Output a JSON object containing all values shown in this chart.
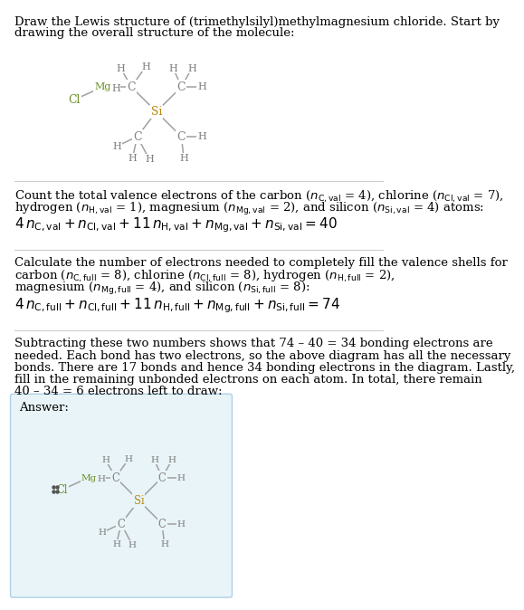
{
  "title_lines": [
    "Draw the Lewis structure of (trimethylsilyl)methylmagnesium chloride. Start by",
    "drawing the overall structure of the molecule:"
  ],
  "s1_lines": [
    "Count the total valence electrons of the carbon ($n_{\\mathrm{C,val}}$ = 4), chlorine ($n_{\\mathrm{Cl,val}}$ = 7),",
    "hydrogen ($n_{\\mathrm{H,val}}$ = 1), magnesium ($n_{\\mathrm{Mg,val}}$ = 2), and silicon ($n_{\\mathrm{Si,val}}$ = 4) atoms:"
  ],
  "s1_eq": "$4\\,n_{\\mathrm{C,val}} + n_{\\mathrm{Cl,val}} + 11\\,n_{\\mathrm{H,val}} + n_{\\mathrm{Mg,val}} + n_{\\mathrm{Si,val}} = 40$",
  "s2_lines": [
    "Calculate the number of electrons needed to completely fill the valence shells for",
    "carbon ($n_{\\mathrm{C,full}}$ = 8), chlorine ($n_{\\mathrm{Cl,full}}$ = 8), hydrogen ($n_{\\mathrm{H,full}}$ = 2),",
    "magnesium ($n_{\\mathrm{Mg,full}}$ = 4), and silicon ($n_{\\mathrm{Si,full}}$ = 8):"
  ],
  "s2_eq": "$4\\,n_{\\mathrm{C,full}} + n_{\\mathrm{Cl,full}} + 11\\,n_{\\mathrm{H,full}} + n_{\\mathrm{Mg,full}} + n_{\\mathrm{Si,full}} = 74$",
  "s3_lines": [
    "Subtracting these two numbers shows that 74 – 40 = 34 bonding electrons are",
    "needed. Each bond has two electrons, so the above diagram has all the necessary",
    "bonds. There are 17 bonds and hence 34 bonding electrons in the diagram. Lastly,",
    "fill in the remaining unbonded electrons on each atom. In total, there remain",
    "40 – 34 = 6 electrons left to draw:"
  ],
  "answer_label": "Answer:",
  "bond_color": "#a0a0a0",
  "C_color": "#808080",
  "Si_color": "#b8860b",
  "Mg_color": "#6b8e23",
  "Cl_color": "#6b8e23",
  "H_color": "#808080",
  "answer_bg": "#e8f4f8",
  "answer_border": "#b0d0e8",
  "divider_color": "#cccccc",
  "text_color": "#000000",
  "lone_pair_color": "#555555"
}
